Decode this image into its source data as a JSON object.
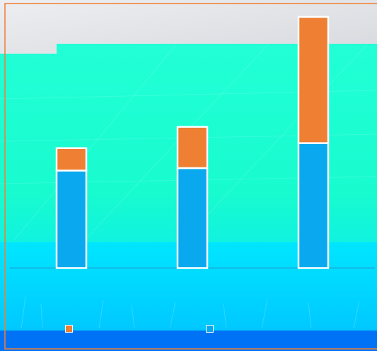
{
  "colors": {
    "frame": "#ef7f33",
    "series_a": "#ef7f33",
    "series_b": "#0aa9ef",
    "baseline": "#1da4d8",
    "bar_outline": "#ffffff",
    "sky_top": "#e6e8ec",
    "field_mint": "#1effd0",
    "ground_cyan": "#00d9ff",
    "ground_blue": "#0072f5"
  },
  "chart_data": {
    "type": "bar",
    "stacked": true,
    "title": "",
    "xlabel": "",
    "ylabel": "",
    "categories": [
      "",
      "",
      ""
    ],
    "series": [
      {
        "values": [
          78,
          80,
          100
        ],
        "color": "#0aa9ef"
      },
      {
        "values": [
          18,
          33,
          101
        ],
        "color": "#ef7f33"
      }
    ],
    "ylim": [
      0,
      210
    ],
    "grid": false,
    "legend_position": "bottom"
  },
  "legend": {
    "items": [
      {
        "label": "",
        "color": "#ef7f33"
      },
      {
        "label": "",
        "color": "#0aa9ef"
      }
    ]
  }
}
